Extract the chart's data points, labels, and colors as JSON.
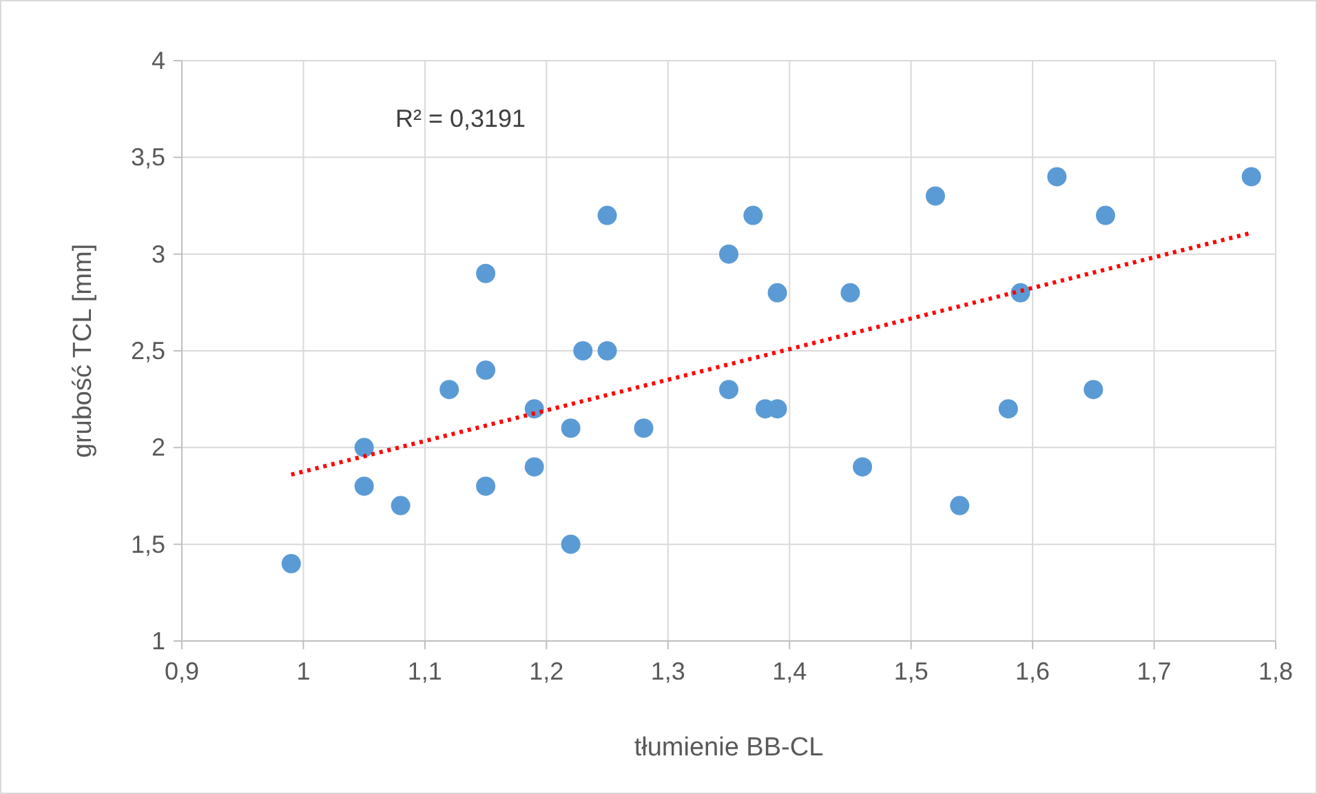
{
  "chart_data": {
    "type": "scatter",
    "xlabel": "tłumienie BB-CL",
    "ylabel": "grubość TCL [mm]",
    "annotations": [
      "R² = 0,3191"
    ],
    "xlim": [
      0.9,
      1.8
    ],
    "xticks": [
      {
        "value": 0.9,
        "label": "0,9"
      },
      1,
      {
        "value": 1.1,
        "label": "1,1"
      },
      {
        "value": 1.2,
        "label": "1,2"
      },
      {
        "value": 1.3,
        "label": "1,3"
      },
      {
        "value": 1.4,
        "label": "1,4"
      },
      {
        "value": 1.5,
        "label": "1,5"
      },
      {
        "value": 1.6,
        "label": "1,6"
      },
      {
        "value": 1.7,
        "label": "1,7"
      },
      {
        "value": 1.8,
        "label": "1,8"
      }
    ],
    "ylim": [
      1,
      4
    ],
    "yticks": [
      1,
      {
        "value": 1.5,
        "label": "1,5"
      },
      2,
      {
        "value": 2.5,
        "label": "2,5"
      },
      3,
      {
        "value": 3.5,
        "label": "3,5"
      },
      4
    ],
    "grid": true,
    "series": [
      {
        "color": "#5b9bd5",
        "marker": "circle",
        "x": [
          0.99,
          1.05,
          1.05,
          1.08,
          1.12,
          1.15,
          1.15,
          1.15,
          1.19,
          1.19,
          1.22,
          1.22,
          1.23,
          1.25,
          1.25,
          1.28,
          1.35,
          1.35,
          1.37,
          1.38,
          1.39,
          1.39,
          1.45,
          1.46,
          1.52,
          1.54,
          1.58,
          1.59,
          1.62,
          1.65,
          1.66,
          1.78
        ],
        "values": [
          1.4,
          2.0,
          1.8,
          1.7,
          2.3,
          2.9,
          2.4,
          1.8,
          2.2,
          1.9,
          2.1,
          1.5,
          2.5,
          2.5,
          3.2,
          2.1,
          3.0,
          2.3,
          3.2,
          2.2,
          2.8,
          2.2,
          2.8,
          1.9,
          3.3,
          1.7,
          2.2,
          2.8,
          3.4,
          2.3,
          3.2,
          3.4
        ]
      },
      {
        "type": "line",
        "color": "#ff0000",
        "line_style": "dotted",
        "x": [
          0.99,
          1.78
        ],
        "values": [
          1.86,
          3.11
        ]
      }
    ]
  }
}
